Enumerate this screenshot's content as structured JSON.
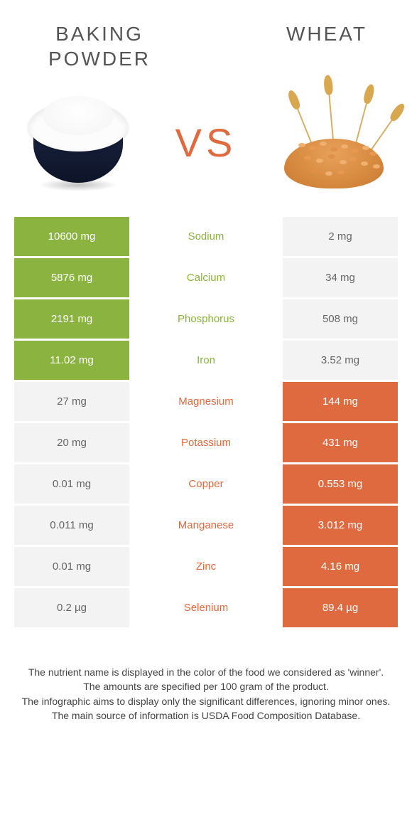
{
  "colors": {
    "green": "#8ab43f",
    "orange": "#e06a3f",
    "grey_bg": "#f3f3f3",
    "text_dark": "#555555"
  },
  "header": {
    "left_title": "Baking powder",
    "right_title": "Wheat",
    "vs": "VS"
  },
  "rows": [
    {
      "nutrient": "Sodium",
      "left": "10600 mg",
      "right": "2 mg",
      "winner": "left"
    },
    {
      "nutrient": "Calcium",
      "left": "5876 mg",
      "right": "34 mg",
      "winner": "left"
    },
    {
      "nutrient": "Phosphorus",
      "left": "2191 mg",
      "right": "508 mg",
      "winner": "left"
    },
    {
      "nutrient": "Iron",
      "left": "11.02 mg",
      "right": "3.52 mg",
      "winner": "left"
    },
    {
      "nutrient": "Magnesium",
      "left": "27 mg",
      "right": "144 mg",
      "winner": "right"
    },
    {
      "nutrient": "Potassium",
      "left": "20 mg",
      "right": "431 mg",
      "winner": "right"
    },
    {
      "nutrient": "Copper",
      "left": "0.01 mg",
      "right": "0.553 mg",
      "winner": "right"
    },
    {
      "nutrient": "Manganese",
      "left": "0.011 mg",
      "right": "3.012 mg",
      "winner": "right"
    },
    {
      "nutrient": "Zinc",
      "left": "0.01 mg",
      "right": "4.16 mg",
      "winner": "right"
    },
    {
      "nutrient": "Selenium",
      "left": "0.2 µg",
      "right": "89.4 µg",
      "winner": "right"
    }
  ],
  "footnotes": [
    "The nutrient name is displayed in the color of the food we considered as 'winner'.",
    "The amounts are specified per 100 gram of the product.",
    "The infographic aims to display only the significant differences, ignoring minor ones.",
    "The main source of information is USDA Food Composition Database."
  ]
}
